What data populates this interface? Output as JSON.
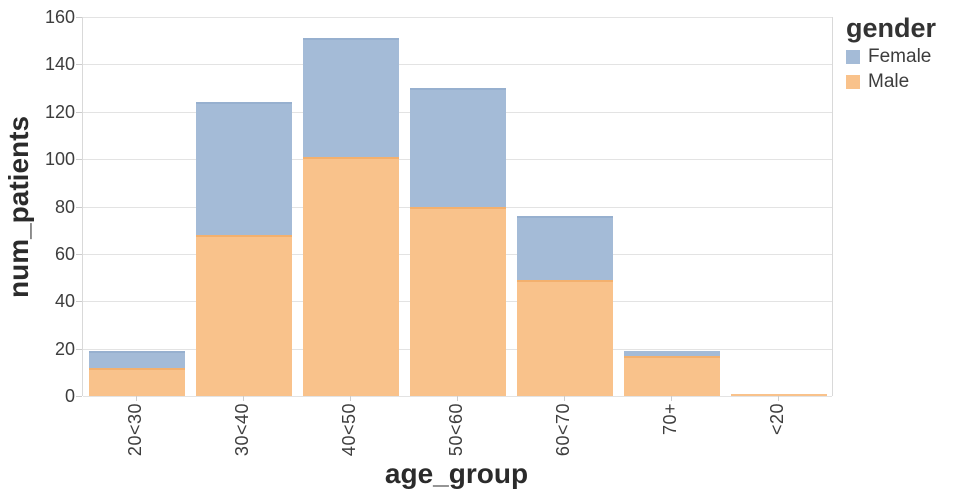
{
  "chart_data": {
    "type": "bar",
    "stacked": true,
    "title": "",
    "xlabel": "age_group",
    "ylabel": "num_patients",
    "categories": [
      "20<30",
      "30<40",
      "40<50",
      "50<60",
      "60<70",
      "70+",
      "<20"
    ],
    "series": [
      {
        "name": "Male",
        "color": "#f9c28b",
        "edge_color": "#f3b06e",
        "values": [
          12,
          68,
          101,
          80,
          49,
          17,
          1
        ]
      },
      {
        "name": "Female",
        "color": "#a4bbd7",
        "edge_color": "#97b0cf",
        "values": [
          7,
          56,
          50,
          50,
          27,
          2,
          0
        ]
      }
    ],
    "totals": [
      19,
      124,
      151,
      130,
      76,
      19,
      1
    ],
    "ylim": [
      0,
      160
    ],
    "yticks": [
      0,
      20,
      40,
      60,
      80,
      100,
      120,
      140,
      160
    ],
    "grid": true,
    "legend": {
      "title": "gender",
      "position": "right",
      "entries": [
        {
          "label": "Female",
          "color": "#a4bbd7"
        },
        {
          "label": "Male",
          "color": "#f9c28b"
        }
      ]
    }
  }
}
